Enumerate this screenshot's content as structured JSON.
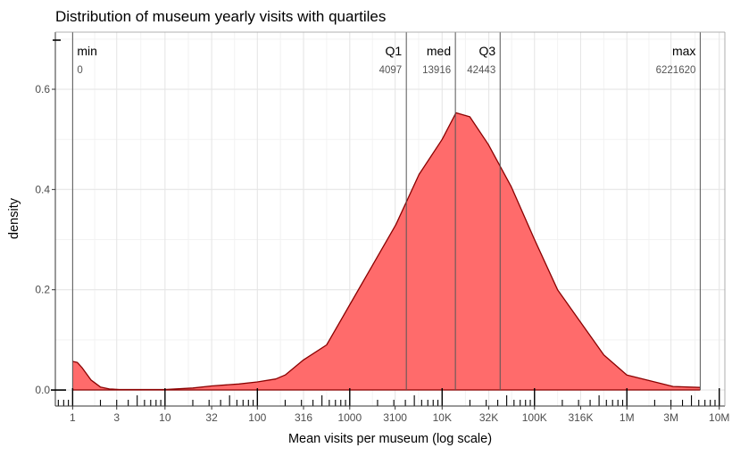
{
  "chart_data": {
    "type": "area",
    "title": "Distribution of museum yearly visits with quartiles",
    "xlabel": "Mean visits per museum (log scale)",
    "ylabel": "density",
    "x_scale": "log10",
    "xlim": [
      0.65,
      11500000
    ],
    "ylim": [
      -0.032,
      0.714
    ],
    "grid": true,
    "x_ticks": [
      1,
      3,
      10,
      32,
      100,
      316,
      1000,
      3100,
      10000,
      32000,
      100000,
      316000,
      1000000,
      3000000,
      10000000
    ],
    "x_tick_labels": [
      "1",
      "3",
      "10",
      "32",
      "100",
      "316",
      "1000",
      "3100",
      "10K",
      "32K",
      "100K",
      "316K",
      "1M",
      "3M",
      "10M"
    ],
    "y_ticks": [
      0,
      0.2,
      0.4,
      0.6
    ],
    "y_tick_labels": [
      "0.0",
      "0.2",
      "0.4",
      "0.6"
    ],
    "fill_color": "#ff6b6b",
    "line_color": "#8b0000",
    "density": {
      "x": [
        1,
        1.12,
        1.26,
        1.58,
        2,
        2.5,
        3.2,
        5,
        10,
        20,
        32,
        63,
        100,
        158,
        200,
        316,
        562,
        1000,
        1778,
        3162,
        5623,
        10000,
        14125,
        19953,
        31623,
        56234,
        100000,
        177828,
        316228,
        562341,
        1000000,
        3162278,
        6221620
      ],
      "y": [
        0.057,
        0.055,
        0.045,
        0.02,
        0.006,
        0.002,
        0.001,
        0.001,
        0.001,
        0.004,
        0.008,
        0.012,
        0.016,
        0.022,
        0.03,
        0.06,
        0.09,
        0.17,
        0.25,
        0.33,
        0.43,
        0.5,
        0.553,
        0.545,
        0.49,
        0.405,
        0.3,
        0.2,
        0.135,
        0.07,
        0.03,
        0.007,
        0.005
      ]
    },
    "annotations": [
      {
        "label": "min",
        "value": 0,
        "value_text": "0",
        "x": 1
      },
      {
        "label": "Q1",
        "value": 4097,
        "value_text": "4097",
        "x": 4097
      },
      {
        "label": "med",
        "value": 13916,
        "value_text": "13916",
        "x": 13916
      },
      {
        "label": "Q3",
        "value": 42443,
        "value_text": "42443",
        "x": 42443
      },
      {
        "label": "max",
        "value": 6221620,
        "value_text": "6221620",
        "x": 6221620
      }
    ]
  }
}
